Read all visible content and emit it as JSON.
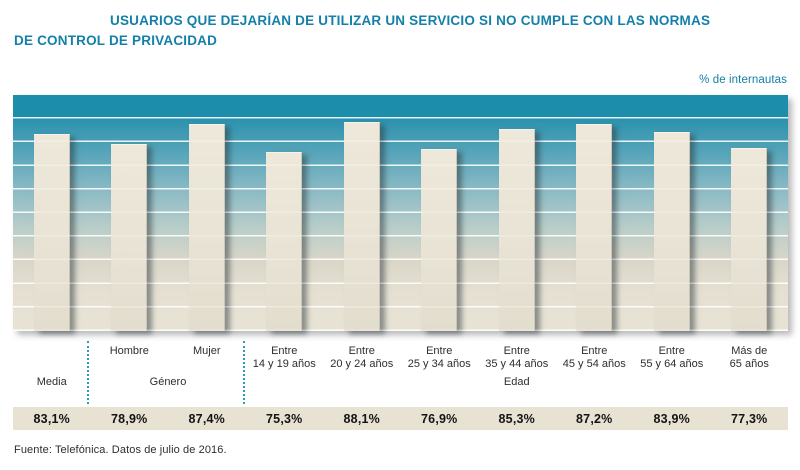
{
  "header": {
    "title": "USUARIOS QUE DEJARÍAN DE UTILIZAR UN SERVICIO SI NO CUMPLE CON LAS NORMAS DE CONTROL DE PRIVACIDAD",
    "title_line1": "USUARIOS QUE DEJARÍAN DE UTILIZAR UN SERVICIO SI NO CUMPLE CON LAS NORMAS",
    "title_line2": "DE CONTROL DE PRIVACIDAD",
    "unit_label": "% de internautas"
  },
  "footer": {
    "source": "Fuente: Telefónica. Datos de julio de 2016."
  },
  "chart_data": {
    "type": "bar",
    "title": "USUARIOS QUE DEJARÍAN DE UTILIZAR UN SERVICIO SI NO CUMPLE CON LAS NORMAS DE CONTROL DE PRIVACIDAD",
    "ylabel": "% de internautas",
    "xlabel": "",
    "ylim": [
      0,
      100
    ],
    "gridline_interval": 10,
    "grid": true,
    "legend": false,
    "categories": [
      "Media",
      "Hombre",
      "Mujer",
      "Entre 14 y 19 años",
      "Entre 20 y 24 años",
      "Entre 25 y 34 años",
      "Entre 35 y 44 años",
      "Entre 45 y 54 años",
      "Entre 55 y 64 años",
      "Más de 65 años"
    ],
    "category_display": [
      [],
      [
        "Hombre"
      ],
      [
        "Mujer"
      ],
      [
        "Entre",
        "14 y 19 años"
      ],
      [
        "Entre",
        "20 y 24 años"
      ],
      [
        "Entre",
        "25 y 34 años"
      ],
      [
        "Entre",
        "35 y 44 años"
      ],
      [
        "Entre",
        "45 y 54 años"
      ],
      [
        "Entre",
        "55 y 64 años"
      ],
      [
        "Más de",
        "65 años"
      ]
    ],
    "values": [
      83.1,
      78.9,
      87.4,
      75.3,
      88.1,
      76.9,
      85.3,
      87.2,
      83.9,
      77.3
    ],
    "value_labels": [
      "83,1%",
      "78,9%",
      "87,4%",
      "75,3%",
      "88,1%",
      "76,9%",
      "85,3%",
      "87,2%",
      "83,9%",
      "77,3%"
    ],
    "groups": [
      {
        "label": "Media",
        "cols": 1
      },
      {
        "label": "Género",
        "cols": 2
      },
      {
        "label": "Edad",
        "cols": 7
      }
    ],
    "colors": {
      "accent": "#1480a9",
      "plot_top_band": "#1d8dac",
      "plot_bottom": "#e8e3d5",
      "bar": "#e8e3d5",
      "value_strip_bg": "#e8e2d3",
      "separator": "#2b9cba",
      "text": "#2e2e2e"
    }
  }
}
